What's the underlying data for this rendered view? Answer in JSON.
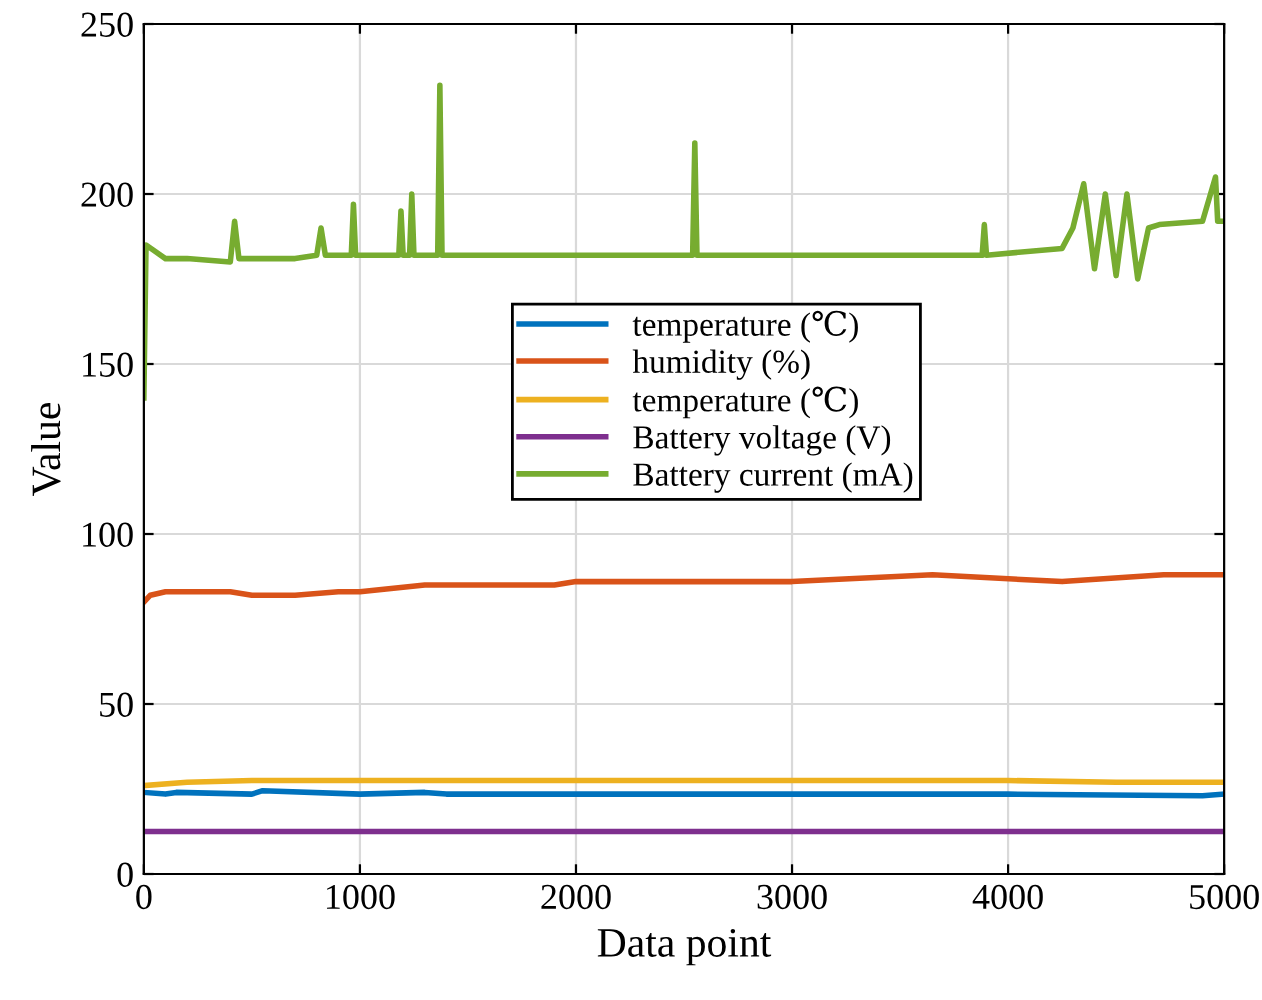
{
  "chart_data": {
    "type": "line",
    "xlabel": "Data point",
    "ylabel": "Value",
    "xlim": [
      0,
      5000
    ],
    "xticks": [
      0,
      1000,
      2000,
      3000,
      4000,
      5000
    ],
    "ylim": [
      0,
      250
    ],
    "yticks": [
      0,
      50,
      100,
      150,
      200,
      250
    ],
    "grid": true,
    "legend": "top",
    "series": [
      {
        "name": "temperature (℃)",
        "color": "#0072bd",
        "x": [
          0,
          100,
          150,
          500,
          550,
          1000,
          1300,
          1400,
          2000,
          3000,
          4000,
          4900,
          5000
        ],
        "values": [
          24,
          23.5,
          24,
          23.5,
          24.5,
          23.5,
          24,
          23.5,
          23.5,
          23.5,
          23.5,
          23,
          23.5
        ]
      },
      {
        "name": "humidity (%)",
        "color": "#d95319",
        "x": [
          0,
          30,
          100,
          400,
          500,
          700,
          900,
          1000,
          1300,
          1900,
          2000,
          3000,
          3650,
          4250,
          4720,
          5000
        ],
        "values": [
          80,
          82,
          83,
          83,
          82,
          82,
          83,
          83,
          85,
          85,
          86,
          86,
          88,
          86,
          88,
          88
        ]
      },
      {
        "name": "temperature (℃)",
        "color": "#edb120",
        "x": [
          0,
          200,
          500,
          1000,
          2000,
          3000,
          4000,
          4500,
          5000
        ],
        "values": [
          26,
          27,
          27.5,
          27.5,
          27.5,
          27.5,
          27.5,
          27,
          27
        ]
      },
      {
        "name": "Battery voltage (V)",
        "color": "#7e2f8e",
        "x": [
          0,
          5000
        ],
        "values": [
          12.5,
          12.5
        ]
      },
      {
        "name": "Battery current (mA)",
        "color": "#77ac30",
        "x": [
          0,
          10,
          100,
          200,
          400,
          420,
          440,
          700,
          800,
          820,
          840,
          960,
          970,
          980,
          1180,
          1190,
          1200,
          1230,
          1240,
          1250,
          1360,
          1370,
          1380,
          1800,
          2540,
          2550,
          2560,
          2800,
          3400,
          3880,
          3890,
          3900,
          4250,
          4300,
          4350,
          4400,
          4450,
          4500,
          4550,
          4600,
          4650,
          4700,
          4900,
          4960,
          4970,
          5000
        ],
        "values": [
          140,
          185,
          181,
          181,
          180,
          192,
          181,
          181,
          182,
          190,
          182,
          182,
          197,
          182,
          182,
          195,
          182,
          182,
          200,
          182,
          182,
          232,
          182,
          182,
          182,
          215,
          182,
          182,
          182,
          182,
          191,
          182,
          184,
          190,
          203,
          178,
          200,
          176,
          200,
          175,
          190,
          191,
          192,
          205,
          192,
          192
        ]
      }
    ]
  }
}
